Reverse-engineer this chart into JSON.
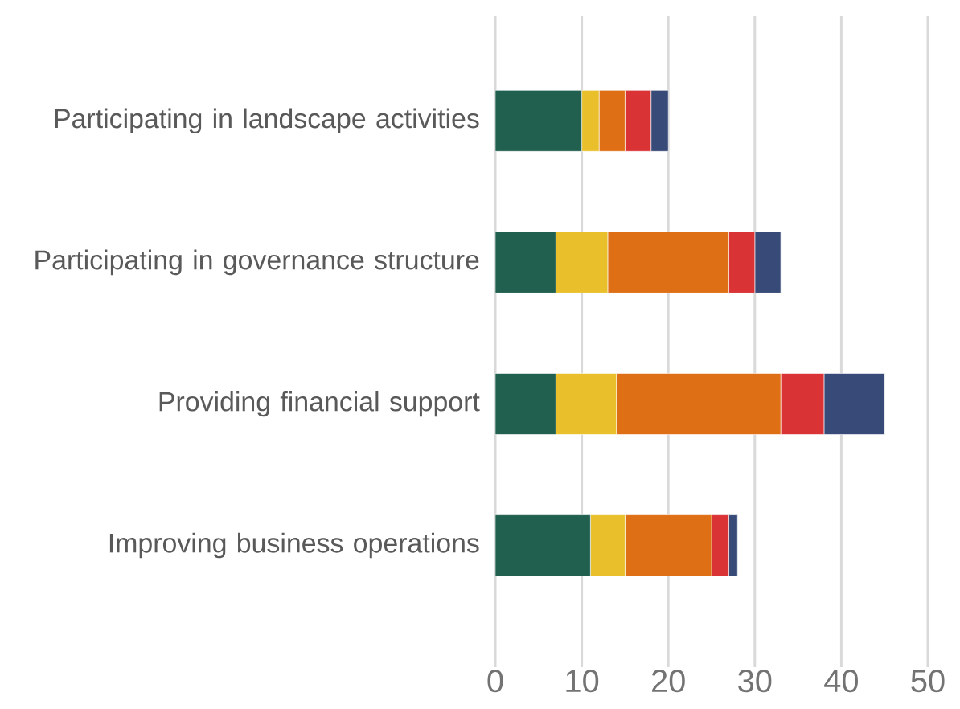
{
  "chart_data": {
    "type": "bar",
    "orientation": "horizontal",
    "stacked": true,
    "categories": [
      "Participating in landscape activities",
      "Participating in governance structure",
      "Providing financial support",
      "Improving business operations"
    ],
    "series": [
      {
        "color": "#215f4f",
        "values": [
          10,
          7,
          7,
          11
        ]
      },
      {
        "color": "#e9c02c",
        "values": [
          2,
          6,
          7,
          4
        ]
      },
      {
        "color": "#df6f15",
        "values": [
          3,
          14,
          19,
          10
        ]
      },
      {
        "color": "#d93336",
        "values": [
          3,
          3,
          5,
          2
        ]
      },
      {
        "color": "#374a78",
        "values": [
          2,
          3,
          7,
          1
        ]
      }
    ],
    "xlim": [
      0,
      50
    ],
    "xticks": [
      0,
      10,
      20,
      30,
      40,
      50
    ],
    "grid": "x"
  }
}
